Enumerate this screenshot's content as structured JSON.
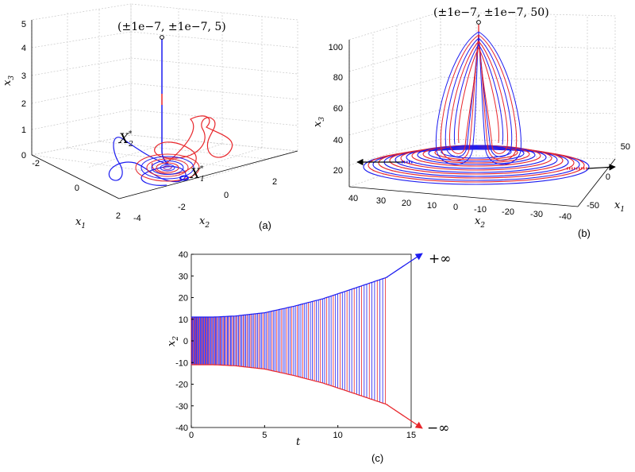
{
  "colors": {
    "red": "#e8262b",
    "blue": "#1c1cf0",
    "black": "#000000"
  },
  "chart_data": [
    {
      "panel": "(a)",
      "type": "line",
      "projection": "3d",
      "annotation": "(±1e−7, ±1e−7, 5)",
      "equilibria": [
        {
          "name": "X",
          "sub": "2",
          "sup": "*"
        },
        {
          "name": "X",
          "sub": "1",
          "sup": "*"
        }
      ],
      "axes": {
        "x1": {
          "label": "x",
          "sub": "1",
          "ticks": [
            "-2",
            "0",
            "2"
          ],
          "range": [
            -2,
            2
          ]
        },
        "x2": {
          "label": "x",
          "sub": "2",
          "ticks": [
            "-4",
            "-2",
            "0",
            "2"
          ],
          "range": [
            -4,
            3
          ]
        },
        "x3": {
          "label": "x",
          "sub": "3",
          "ticks": [
            "0",
            "1",
            "2",
            "3",
            "4",
            "5"
          ],
          "range": [
            0,
            5
          ]
        }
      },
      "grid": true
    },
    {
      "panel": "(b)",
      "type": "line",
      "projection": "3d",
      "annotation": "(±1e−7, ±1e−7, 50)",
      "axes": {
        "x1": {
          "label": "x",
          "sub": "1",
          "ticks": [
            "-50",
            "0",
            "50"
          ],
          "range": [
            -50,
            50
          ]
        },
        "x2": {
          "label": "x",
          "sub": "2",
          "ticks": [
            "40",
            "30",
            "20",
            "10",
            "0",
            "-10",
            "-20",
            "-30",
            "-40"
          ],
          "range": [
            -40,
            40
          ]
        },
        "x3": {
          "label": "x",
          "sub": "3",
          "ticks": [
            "20",
            "40",
            "60",
            "80",
            "100"
          ],
          "range": [
            10,
            105
          ]
        }
      },
      "grid": true
    },
    {
      "panel": "(c)",
      "type": "line",
      "xlabel": "t",
      "ylabel": {
        "label": "x",
        "sub": "2"
      },
      "xlim": [
        0,
        15
      ],
      "ylim": [
        -40,
        40
      ],
      "xticks": [
        "0",
        "5",
        "10",
        "15"
      ],
      "yticks": [
        "40",
        "30",
        "20",
        "10",
        "0",
        "-10",
        "-20",
        "-30",
        "-40"
      ],
      "envelope": {
        "t": [
          0,
          1.5,
          3,
          5,
          7,
          9,
          11,
          13.4
        ],
        "amplitude": [
          11,
          11,
          11.5,
          13,
          16,
          19.5,
          24,
          29.5
        ]
      },
      "oscillation_end_t": 13.4,
      "limits": {
        "top": "+∞",
        "bottom": "−∞"
      },
      "grid": false
    }
  ]
}
